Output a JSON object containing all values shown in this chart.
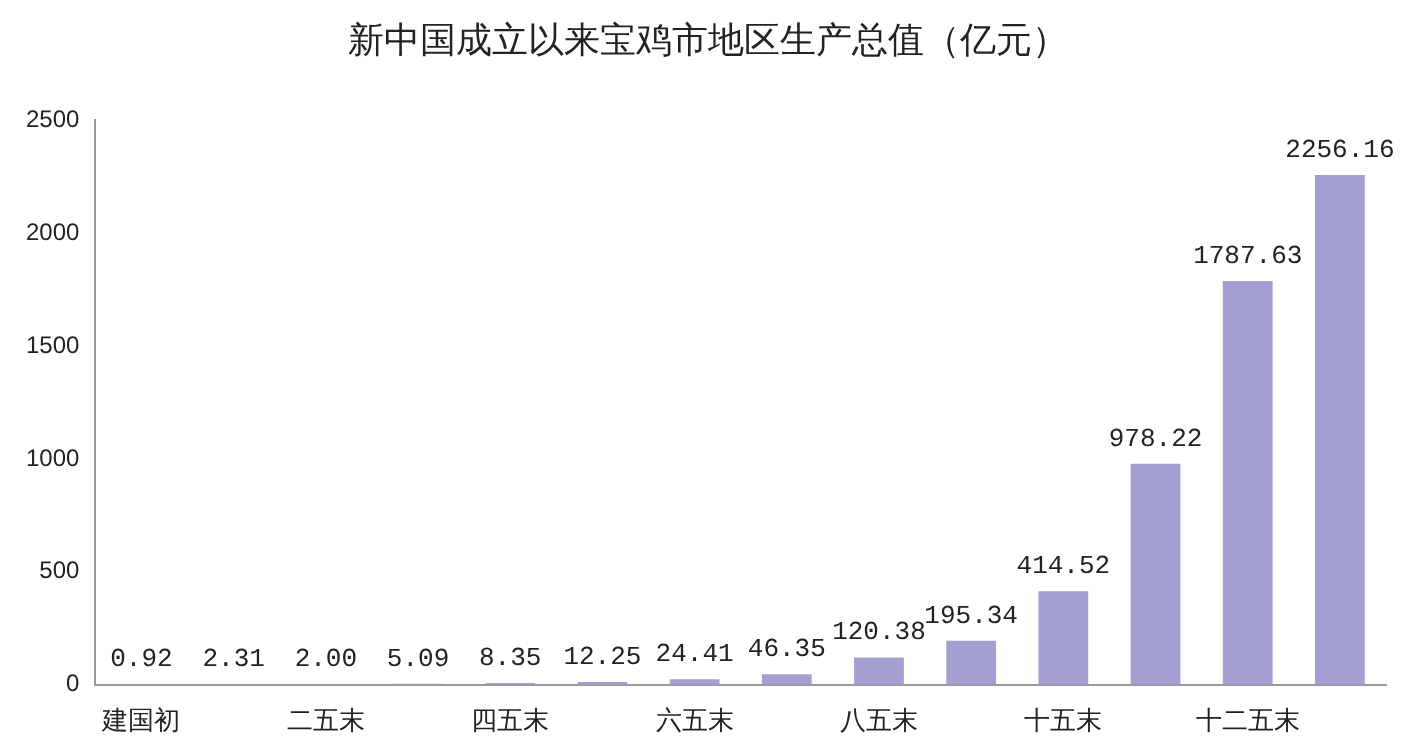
{
  "chart_data": {
    "type": "bar",
    "title": "新中国成立以来宝鸡市地区生产总值（亿元）",
    "categories": [
      "建国初",
      null,
      "二五末",
      null,
      "四五末",
      null,
      "六五末",
      null,
      "八五末",
      null,
      "十五末",
      null,
      "十二五末",
      null
    ],
    "values": [
      0.92,
      2.31,
      2.0,
      5.09,
      8.35,
      12.25,
      24.41,
      46.35,
      120.38,
      195.34,
      414.52,
      978.22,
      1787.63,
      2256.16
    ],
    "value_labels": [
      "0.92",
      "2.31",
      "2.00",
      "5.09",
      "8.35",
      "12.25",
      "24.41",
      "46.35",
      "120.38",
      "195.34",
      "414.52",
      "978.22",
      "1787.63",
      "2256.16"
    ],
    "color": "#a39fd2",
    "ylim": [
      0,
      2500
    ],
    "yticks": [
      0,
      500,
      1000,
      1500,
      2000,
      2500
    ],
    "grid": false
  }
}
